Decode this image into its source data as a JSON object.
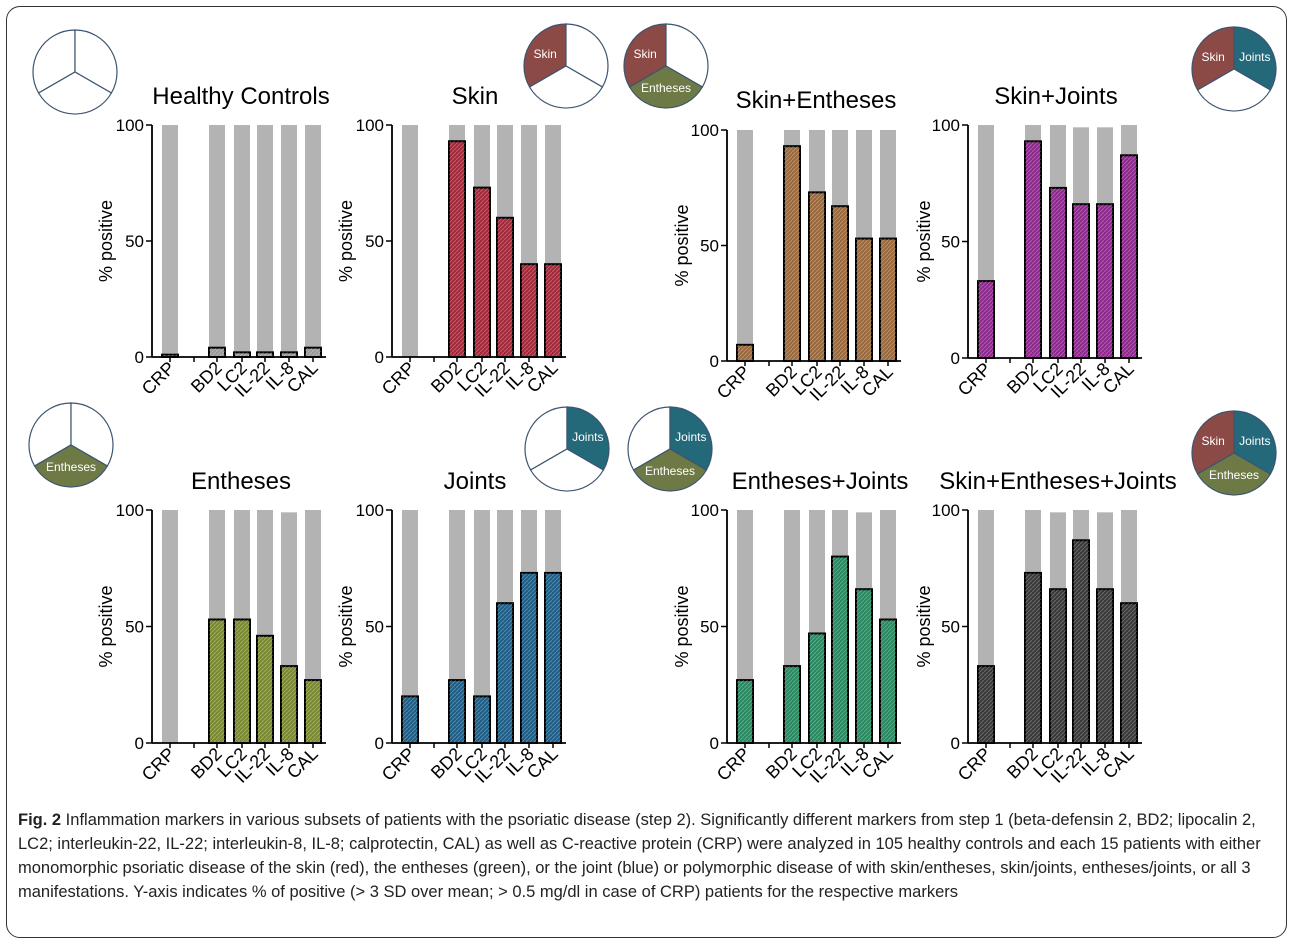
{
  "colors": {
    "background_bar": "#b3b3b3",
    "skin": "#8b4a45",
    "entheses": "#6e7a45",
    "joints": "#24697a",
    "pie_outline": "#3d5470",
    "axis": "#000000"
  },
  "pie_labels": {
    "skin": "Skin",
    "entheses": "Entheses",
    "joints": "Joints"
  },
  "caption": {
    "label": "Fig. 2",
    "text": " Inflammation markers in various subsets of patients with the psoriatic disease (step 2). Significantly different markers from step 1 (beta-defensin 2, BD2; lipocalin 2, LC2; interleukin-22, IL-22; interleukin-8, IL-8; calprotectin, CAL) as well as C-reactive protein (CRP) were analyzed in 105 healthy controls and each 15 patients with either monomorphic psoriatic disease of the skin (red), the entheses (green), or the joint (blue) or polymorphic disease of with skin/entheses, skin/joints, entheses/joints, or all 3 manifestations. Y-axis indicates % of positive (> 3 SD over mean; > 0.5 mg/dl in case of CRP) patients for the respective markers"
  },
  "chart_data": [
    {
      "type": "bar",
      "title": "Healthy Controls",
      "ylabel": "% positive",
      "ylim": [
        0,
        100
      ],
      "yticks": [
        0,
        50,
        100
      ],
      "categories": [
        "CRP",
        "BD2",
        "LC2",
        "IL-22",
        "IL-8",
        "CAL"
      ],
      "values": [
        1,
        4,
        2,
        2,
        2,
        4
      ],
      "background_values": [
        100,
        100,
        100,
        100,
        100,
        100
      ],
      "fill_color": "#9a9a9a",
      "pie": {
        "skin": false,
        "entheses": false,
        "joints": false
      }
    },
    {
      "type": "bar",
      "title": "Skin",
      "ylabel": "% positive",
      "ylim": [
        0,
        100
      ],
      "yticks": [
        0,
        50,
        100
      ],
      "categories": [
        "CRP",
        "BD2",
        "LC2",
        "IL-22",
        "IL-8",
        "CAL"
      ],
      "values": [
        0,
        93,
        73,
        60,
        40,
        40
      ],
      "background_values": [
        100,
        100,
        100,
        100,
        100,
        100
      ],
      "fill_color": "#a32a3a",
      "pie": {
        "skin": true,
        "entheses": false,
        "joints": false
      }
    },
    {
      "type": "bar",
      "title": "Skin+Entheses",
      "ylabel": "% positive",
      "ylim": [
        0,
        100
      ],
      "yticks": [
        0,
        50,
        100
      ],
      "categories": [
        "CRP",
        "BD2",
        "LC2",
        "IL-22",
        "IL-8",
        "CAL"
      ],
      "values": [
        7,
        93,
        73,
        67,
        53,
        53
      ],
      "background_values": [
        100,
        100,
        100,
        100,
        100,
        100
      ],
      "fill_color": "#9a6a3e",
      "pie": {
        "skin": true,
        "entheses": true,
        "joints": false
      }
    },
    {
      "type": "bar",
      "title": "Skin+Joints",
      "ylabel": "% positive",
      "ylim": [
        0,
        100
      ],
      "yticks": [
        0,
        50,
        100
      ],
      "categories": [
        "CRP",
        "BD2",
        "LC2",
        "IL-22",
        "IL-8",
        "CAL"
      ],
      "values": [
        33,
        93,
        73,
        66,
        66,
        87
      ],
      "background_values": [
        100,
        100,
        100,
        99,
        99,
        100
      ],
      "fill_color": "#8e2a8e",
      "pie": {
        "skin": true,
        "entheses": false,
        "joints": true
      }
    },
    {
      "type": "bar",
      "title": "Entheses",
      "ylabel": "% positive",
      "ylim": [
        0,
        100
      ],
      "yticks": [
        0,
        50,
        100
      ],
      "categories": [
        "CRP",
        "BD2",
        "LC2",
        "IL-22",
        "IL-8",
        "CAL"
      ],
      "values": [
        0,
        53,
        53,
        46,
        33,
        27
      ],
      "background_values": [
        100,
        100,
        100,
        100,
        99,
        100
      ],
      "fill_color": "#7a8a32",
      "pie": {
        "skin": false,
        "entheses": true,
        "joints": false
      }
    },
    {
      "type": "bar",
      "title": "Joints",
      "ylabel": "% positive",
      "ylim": [
        0,
        100
      ],
      "yticks": [
        0,
        50,
        100
      ],
      "categories": [
        "CRP",
        "BD2",
        "LC2",
        "IL-22",
        "IL-8",
        "CAL"
      ],
      "values": [
        20,
        27,
        20,
        60,
        73,
        73
      ],
      "background_values": [
        100,
        100,
        100,
        100,
        100,
        100
      ],
      "fill_color": "#1f5f86",
      "pie": {
        "skin": false,
        "entheses": false,
        "joints": true
      }
    },
    {
      "type": "bar",
      "title": "Entheses+Joints",
      "ylabel": "% positive",
      "ylim": [
        0,
        100
      ],
      "yticks": [
        0,
        50,
        100
      ],
      "categories": [
        "CRP",
        "BD2",
        "LC2",
        "IL-22",
        "IL-8",
        "CAL"
      ],
      "values": [
        27,
        33,
        47,
        80,
        66,
        53
      ],
      "background_values": [
        100,
        100,
        100,
        100,
        99,
        100
      ],
      "fill_color": "#2a8a62",
      "pie": {
        "skin": false,
        "entheses": true,
        "joints": true
      }
    },
    {
      "type": "bar",
      "title": "Skin+Entheses+Joints",
      "ylabel": "% positive",
      "ylim": [
        0,
        100
      ],
      "yticks": [
        0,
        50,
        100
      ],
      "categories": [
        "CRP",
        "BD2",
        "LC2",
        "IL-22",
        "IL-8",
        "CAL"
      ],
      "values": [
        33,
        73,
        66,
        87,
        66,
        60
      ],
      "background_values": [
        100,
        100,
        99,
        100,
        99,
        100
      ],
      "fill_color": "#3a3a3a",
      "pie": {
        "skin": true,
        "entheses": true,
        "joints": true
      }
    }
  ]
}
